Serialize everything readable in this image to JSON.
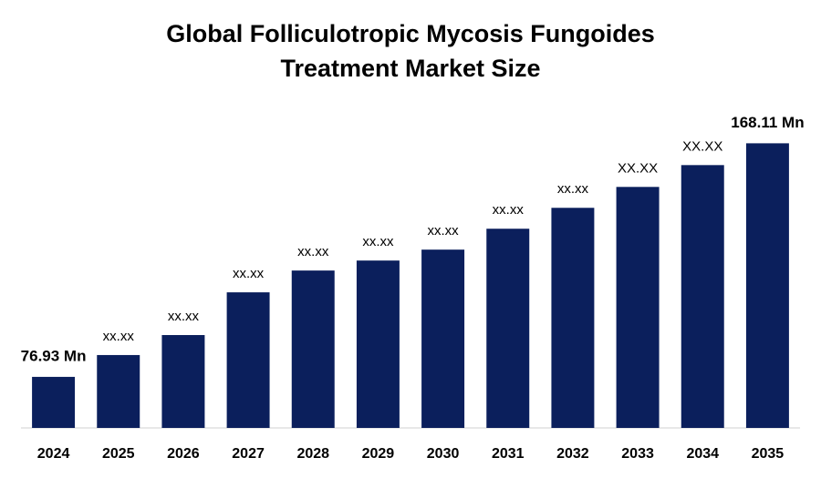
{
  "chart_data": {
    "type": "bar",
    "title": "Global Folliculotropic Mycosis Fungoides Treatment Market Size",
    "categories": [
      "2024",
      "2025",
      "2026",
      "2027",
      "2028",
      "2029",
      "2030",
      "2031",
      "2032",
      "2033",
      "2034",
      "2035"
    ],
    "values": [
      76.93,
      85.45,
      93.25,
      109.93,
      118.44,
      122.34,
      126.6,
      134.76,
      142.92,
      151.08,
      159.6,
      168.11
    ],
    "value_labels": [
      "76.93 Mn",
      "xx.xx",
      "xx.xx",
      "xx.xx",
      "xx.xx",
      "xx.xx",
      "xx.xx",
      "xx.xx",
      "xx.xx",
      "XX.XX",
      "XX.XX",
      "168.11 Mn"
    ],
    "color": "#0b1f5c",
    "ylim": [
      57,
      175
    ]
  }
}
